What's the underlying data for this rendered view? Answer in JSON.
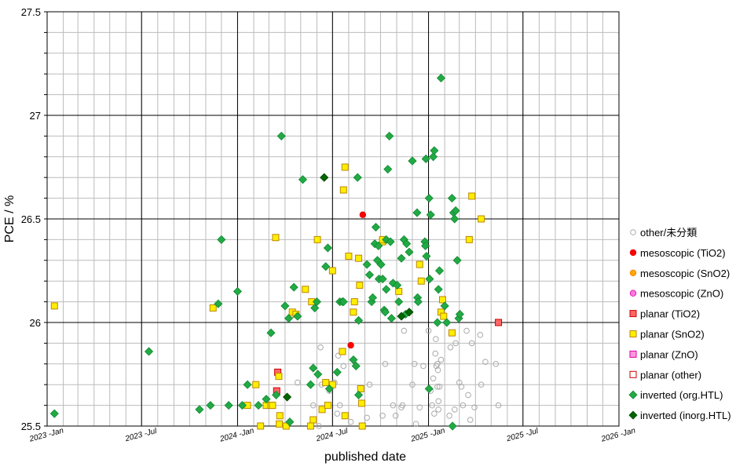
{
  "chart_data": {
    "type": "scatter",
    "xlabel": "published date",
    "ylabel": "PCE / %",
    "x_range": [
      "2023-01-01",
      "2026-01-01"
    ],
    "ylim": [
      25.5,
      27.5
    ],
    "x_ticks": [
      {
        "value": "2023-01-01",
        "label": "2023 -Jan"
      },
      {
        "value": "2023-07-01",
        "label": "2023 -Jul"
      },
      {
        "value": "2024-01-01",
        "label": "2024 -Jan"
      },
      {
        "value": "2024-07-01",
        "label": "2024 -Jul"
      },
      {
        "value": "2025-01-01",
        "label": "2025 -Jan"
      },
      {
        "value": "2025-07-01",
        "label": "2025 -Jul"
      },
      {
        "value": "2026-01-01",
        "label": "2026 -Jan"
      }
    ],
    "y_ticks": [
      25.5,
      26,
      26.5,
      27,
      27.5
    ],
    "grid": true,
    "legend_position": "right",
    "series": [
      {
        "name": "other/未分類",
        "marker": "circle-open",
        "color": "#aaaaaa",
        "fill": "none",
        "points": [
          [
            "2024-04-25",
            25.71
          ],
          [
            "2024-05-20",
            25.7
          ],
          [
            "2024-05-25",
            25.6
          ],
          [
            "2024-06-08",
            25.88
          ],
          [
            "2024-06-10",
            25.7
          ],
          [
            "2024-06-05",
            25.5
          ],
          [
            "2024-06-25",
            25.67
          ],
          [
            "2024-07-05",
            25.71
          ],
          [
            "2024-07-12",
            25.84
          ],
          [
            "2024-07-10",
            25.56
          ],
          [
            "2024-07-15",
            25.6
          ],
          [
            "2024-07-22",
            25.79
          ],
          [
            "2024-08-05",
            25.52
          ],
          [
            "2024-09-05",
            25.54
          ],
          [
            "2024-09-10",
            25.7
          ],
          [
            "2024-10-05",
            25.55
          ],
          [
            "2024-10-10",
            25.8
          ],
          [
            "2024-10-25",
            25.6
          ],
          [
            "2024-10-30",
            25.55
          ],
          [
            "2024-11-10",
            25.59
          ],
          [
            "2024-11-12",
            25.6
          ],
          [
            "2024-11-15",
            25.96
          ],
          [
            "2024-12-01",
            25.7
          ],
          [
            "2024-12-05",
            25.8
          ],
          [
            "2024-12-08",
            25.51
          ],
          [
            "2024-12-15",
            25.59
          ],
          [
            "2024-12-22",
            25.79
          ],
          [
            "2025-01-01",
            25.96
          ],
          [
            "2025-01-05",
            25.67
          ],
          [
            "2025-01-08",
            25.6
          ],
          [
            "2025-01-10",
            25.73
          ],
          [
            "2025-01-12",
            25.56
          ],
          [
            "2025-01-15",
            25.92
          ],
          [
            "2025-01-18",
            25.69
          ],
          [
            "2025-01-20",
            25.62
          ],
          [
            "2025-01-22",
            25.69
          ],
          [
            "2025-01-25",
            25.82
          ],
          [
            "2025-01-20",
            25.58
          ],
          [
            "2025-02-10",
            25.55
          ],
          [
            "2025-02-12",
            25.88
          ],
          [
            "2025-02-20",
            25.58
          ],
          [
            "2025-02-22",
            25.9
          ],
          [
            "2025-03-01",
            25.71
          ],
          [
            "2025-03-05",
            25.69
          ],
          [
            "2025-03-08",
            25.6
          ],
          [
            "2025-03-15",
            25.96
          ],
          [
            "2025-03-18",
            25.65
          ],
          [
            "2025-03-22",
            25.53
          ],
          [
            "2025-03-25",
            25.9
          ],
          [
            "2025-03-30",
            25.59
          ],
          [
            "2025-04-10",
            25.94
          ],
          [
            "2025-04-12",
            25.7
          ],
          [
            "2025-04-20",
            25.81
          ],
          [
            "2025-05-10",
            25.8
          ],
          [
            "2025-05-15",
            25.6
          ],
          [
            "2025-01-18",
            25.8
          ],
          [
            "2025-01-14",
            25.85
          ],
          [
            "2025-01-16",
            25.79
          ],
          [
            "2025-01-19",
            25.77
          ]
        ]
      },
      {
        "name": "mesoscopic (TiO2)",
        "marker": "circle",
        "color": "#dd0000",
        "fill": "#ff0000",
        "points": [
          [
            "2024-08-28",
            26.52
          ],
          [
            "2024-08-05",
            25.89
          ]
        ]
      },
      {
        "name": "mesoscopic (SnO2)",
        "marker": "circle",
        "color": "#ee7700",
        "fill": "#ffaa00",
        "points": []
      },
      {
        "name": "mesoscopic (ZnO)",
        "marker": "circle",
        "color": "#dd00aa",
        "fill": "#ff77dd",
        "points": []
      },
      {
        "name": "planar (TiO2)",
        "marker": "square",
        "color": "#cc0000",
        "fill": "#ff6666",
        "points": [
          [
            "2024-03-18",
            25.76
          ],
          [
            "2024-03-16",
            25.67
          ],
          [
            "2025-05-15",
            26.0
          ]
        ]
      },
      {
        "name": "planar (SnO2)",
        "marker": "square",
        "color": "#bb8800",
        "fill": "#ffee00",
        "points": [
          [
            "2023-01-15",
            26.08
          ],
          [
            "2023-11-15",
            26.07
          ],
          [
            "2024-01-20",
            25.6
          ],
          [
            "2024-02-05",
            25.7
          ],
          [
            "2024-02-25",
            25.6
          ],
          [
            "2024-03-05",
            25.6
          ],
          [
            "2024-03-14",
            26.41
          ],
          [
            "2024-03-20",
            25.74
          ],
          [
            "2024-03-22",
            25.55
          ],
          [
            "2024-03-21",
            25.51
          ],
          [
            "2024-03-08",
            25.6
          ],
          [
            "2024-02-14",
            25.5
          ],
          [
            "2024-04-15",
            26.05
          ],
          [
            "2024-04-22",
            26.04
          ],
          [
            "2024-05-10",
            26.16
          ],
          [
            "2024-05-22",
            26.1
          ],
          [
            "2024-06-02",
            26.4
          ],
          [
            "2024-06-11",
            25.58
          ],
          [
            "2024-06-22",
            25.6
          ],
          [
            "2024-06-18",
            25.71
          ],
          [
            "2024-05-25",
            25.53
          ],
          [
            "2024-05-20",
            25.5
          ],
          [
            "2024-04-03",
            25.5
          ],
          [
            "2024-07-01",
            25.7
          ],
          [
            "2024-07-01",
            26.25
          ],
          [
            "2024-07-20",
            25.86
          ],
          [
            "2024-07-25",
            26.75
          ],
          [
            "2024-07-22",
            26.64
          ],
          [
            "2024-07-25",
            25.55
          ],
          [
            "2024-08-01",
            26.32
          ],
          [
            "2024-08-10",
            26.05
          ],
          [
            "2024-08-12",
            26.1
          ],
          [
            "2024-08-20",
            26.31
          ],
          [
            "2024-08-22",
            26.18
          ],
          [
            "2024-08-24",
            25.68
          ],
          [
            "2024-08-26",
            25.61
          ],
          [
            "2024-08-27",
            25.5
          ],
          [
            "2024-10-05",
            26.39
          ],
          [
            "2024-10-05",
            26.4
          ],
          [
            "2024-11-05",
            26.15
          ],
          [
            "2024-12-15",
            26.28
          ],
          [
            "2024-12-18",
            26.2
          ],
          [
            "2025-01-25",
            26.05
          ],
          [
            "2025-01-28",
            26.11
          ],
          [
            "2025-01-30",
            26.03
          ],
          [
            "2025-02-15",
            25.95
          ],
          [
            "2025-03-25",
            26.61
          ],
          [
            "2025-03-20",
            26.4
          ],
          [
            "2025-04-12",
            26.5
          ]
        ]
      },
      {
        "name": "planar (ZnO)",
        "marker": "square",
        "color": "#dd00aa",
        "fill": "#ff99dd",
        "points": []
      },
      {
        "name": "planar (other)",
        "marker": "square",
        "color": "#cc0000",
        "fill": "#ffffff",
        "points": []
      },
      {
        "name": "inverted (org.HTL)",
        "marker": "diamond",
        "color": "#118833",
        "fill": "#22aa44",
        "points": [
          [
            "2023-01-15",
            25.56
          ],
          [
            "2023-07-15",
            25.86
          ],
          [
            "2023-10-20",
            25.58
          ],
          [
            "2023-11-10",
            25.6
          ],
          [
            "2023-11-25",
            26.09
          ],
          [
            "2023-12-01",
            26.4
          ],
          [
            "2023-12-15",
            25.6
          ],
          [
            "2024-01-01",
            26.15
          ],
          [
            "2024-01-10",
            25.6
          ],
          [
            "2024-01-20",
            25.7
          ],
          [
            "2024-02-10",
            25.6
          ],
          [
            "2024-02-25",
            25.63
          ],
          [
            "2024-03-05",
            25.95
          ],
          [
            "2024-03-15",
            25.65
          ],
          [
            "2024-03-25",
            26.9
          ],
          [
            "2024-04-01",
            26.08
          ],
          [
            "2024-04-08",
            26.02
          ],
          [
            "2024-04-10",
            25.52
          ],
          [
            "2024-04-18",
            26.17
          ],
          [
            "2024-04-25",
            26.03
          ],
          [
            "2024-05-05",
            26.69
          ],
          [
            "2024-05-20",
            25.7
          ],
          [
            "2024-05-25",
            25.78
          ],
          [
            "2024-05-28",
            26.07
          ],
          [
            "2024-06-01",
            26.1
          ],
          [
            "2024-06-03",
            25.75
          ],
          [
            "2024-06-18",
            26.27
          ],
          [
            "2024-06-22",
            26.36
          ],
          [
            "2024-06-25",
            25.68
          ],
          [
            "2024-07-10",
            25.76
          ],
          [
            "2024-07-15",
            26.1
          ],
          [
            "2024-07-20",
            26.1
          ],
          [
            "2024-07-22",
            26.1
          ],
          [
            "2024-08-10",
            25.82
          ],
          [
            "2024-08-15",
            25.79
          ],
          [
            "2024-08-18",
            26.7
          ],
          [
            "2024-08-20",
            26.01
          ],
          [
            "2024-08-20",
            25.65
          ],
          [
            "2024-09-05",
            26.28
          ],
          [
            "2024-09-10",
            26.23
          ],
          [
            "2024-09-14",
            26.1
          ],
          [
            "2024-09-16",
            26.12
          ],
          [
            "2024-09-20",
            26.38
          ],
          [
            "2024-09-22",
            26.46
          ],
          [
            "2024-09-25",
            26.3
          ],
          [
            "2024-09-27",
            26.37
          ],
          [
            "2024-09-28",
            26.21
          ],
          [
            "2024-10-02",
            26.28
          ],
          [
            "2024-10-05",
            26.21
          ],
          [
            "2024-10-08",
            26.06
          ],
          [
            "2024-10-10",
            26.05
          ],
          [
            "2024-10-12",
            26.16
          ],
          [
            "2024-10-12",
            26.4
          ],
          [
            "2024-10-15",
            26.74
          ],
          [
            "2024-10-18",
            26.9
          ],
          [
            "2024-10-20",
            26.39
          ],
          [
            "2024-10-22",
            26.02
          ],
          [
            "2024-10-25",
            26.19
          ],
          [
            "2024-11-02",
            26.18
          ],
          [
            "2024-11-05",
            26.1
          ],
          [
            "2024-11-10",
            26.31
          ],
          [
            "2024-11-15",
            26.4
          ],
          [
            "2024-11-18",
            26.04
          ],
          [
            "2024-11-20",
            26.38
          ],
          [
            "2024-11-25",
            26.34
          ],
          [
            "2024-12-01",
            26.78
          ],
          [
            "2024-12-10",
            26.53
          ],
          [
            "2024-12-11",
            26.12
          ],
          [
            "2024-12-12",
            26.1
          ],
          [
            "2024-12-25",
            26.39
          ],
          [
            "2024-12-26",
            26.37
          ],
          [
            "2024-12-27",
            26.79
          ],
          [
            "2024-12-28",
            26.32
          ],
          [
            "2025-01-02",
            26.6
          ],
          [
            "2025-01-03",
            26.21
          ],
          [
            "2025-01-05",
            26.52
          ],
          [
            "2025-01-10",
            26.8
          ],
          [
            "2025-01-12",
            26.83
          ],
          [
            "2025-01-20",
            26.16
          ],
          [
            "2025-01-22",
            26.25
          ],
          [
            "2025-01-25",
            27.18
          ],
          [
            "2025-02-01",
            26.08
          ],
          [
            "2025-02-05",
            26.0
          ],
          [
            "2025-02-15",
            26.6
          ],
          [
            "2025-02-18",
            26.53
          ],
          [
            "2025-02-20",
            26.5
          ],
          [
            "2025-02-22",
            26.54
          ],
          [
            "2025-02-25",
            26.3
          ],
          [
            "2025-02-28",
            26.02
          ],
          [
            "2025-03-02",
            26.04
          ],
          [
            "2025-01-18",
            26.0
          ],
          [
            "2025-02-16",
            25.5
          ],
          [
            "2025-01-02",
            25.68
          ]
        ]
      },
      {
        "name": "inverted (inorg.HTL)",
        "marker": "diamond",
        "color": "#004400",
        "fill": "#006600",
        "points": [
          [
            "2024-04-05",
            25.64
          ],
          [
            "2024-06-15",
            26.7
          ],
          [
            "2024-11-10",
            26.03
          ],
          [
            "2024-11-25",
            26.05
          ]
        ]
      }
    ]
  }
}
